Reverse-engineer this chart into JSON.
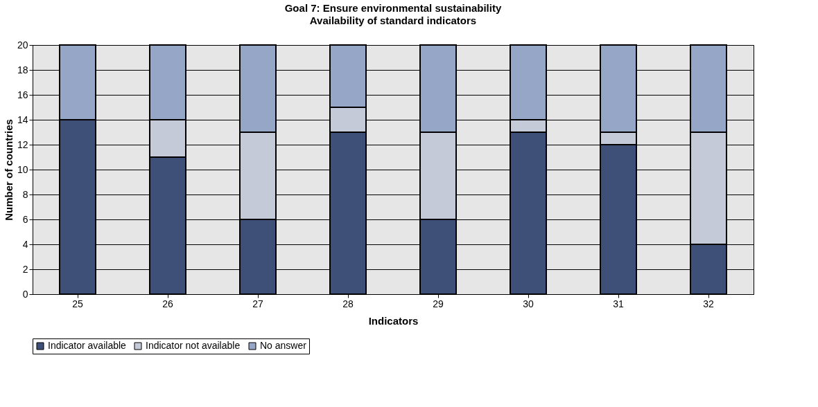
{
  "chart_data": {
    "type": "bar",
    "title": "Goal 7:  Ensure environmental sustainability",
    "subtitle": "Availability of standard indicators",
    "xlabel": "Indicators",
    "ylabel": "Number of countries",
    "categories": [
      "25",
      "26",
      "27",
      "28",
      "29",
      "30",
      "31",
      "32"
    ],
    "series": [
      {
        "name": "Indicator available",
        "color": "#3f5078",
        "values": [
          14,
          11,
          6,
          13,
          6,
          13,
          12,
          4
        ]
      },
      {
        "name": "Indicator not available",
        "color": "#c4cad8",
        "values": [
          0,
          3,
          7,
          2,
          7,
          1,
          1,
          9
        ]
      },
      {
        "name": "No answer",
        "color": "#96a6c6",
        "values": [
          6,
          6,
          7,
          5,
          7,
          6,
          7,
          7
        ]
      }
    ],
    "stacked": true,
    "ylim": [
      0,
      20
    ],
    "yticks": [
      0,
      2,
      4,
      6,
      8,
      10,
      12,
      14,
      16,
      18,
      20
    ],
    "grid": "y",
    "legend": "bottom"
  }
}
